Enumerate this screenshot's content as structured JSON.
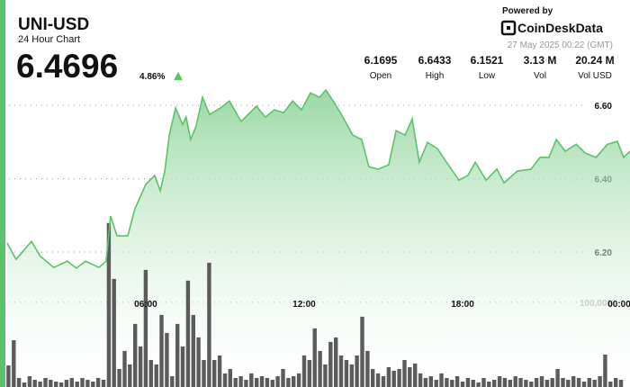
{
  "header": {
    "symbol": "UNI-USD",
    "subtitle": "24 Hour Chart",
    "price": "6.4696",
    "change": "4.86%",
    "powered": "Powered by",
    "brand": "CoinDeskData",
    "timestamp": "27 May 2025 00:22 (GMT)",
    "stats": [
      {
        "value": "6.1695",
        "label": "Open"
      },
      {
        "value": "6.6433",
        "label": "High"
      },
      {
        "value": "6.1521",
        "label": "Low"
      },
      {
        "value": "3.13 M",
        "label": "Vol"
      },
      {
        "value": "20.24 M",
        "label": "Vol USD"
      }
    ]
  },
  "chart_data": [
    {
      "type": "line",
      "color": "#5cc26b",
      "x": [
        0.75,
        1.09,
        1.67,
        2.01,
        2.52,
        3.03,
        3.37,
        3.72,
        4.23,
        4.5,
        4.67,
        4.91,
        5.32,
        5.59,
        6.0,
        6.34,
        6.55,
        6.72,
        6.89,
        7.13,
        7.4,
        7.53,
        7.7,
        7.91,
        8.15,
        8.42,
        8.83,
        9.17,
        9.61,
        10.19,
        10.53,
        10.87,
        11.22,
        11.56,
        11.9,
        12.24,
        12.58,
        12.82,
        13.16,
        13.43,
        13.84,
        14.18,
        14.45,
        14.8,
        15.2,
        15.48,
        15.82,
        16.09,
        16.36,
        16.67,
        17.05,
        17.39,
        17.86,
        18.2,
        18.48,
        18.89,
        19.3,
        19.57,
        20.08,
        20.59,
        20.93,
        21.27,
        21.55,
        21.89,
        22.3,
        22.64,
        23.05,
        23.49,
        23.86,
        24.1,
        24.34
      ],
      "values": [
        6.225,
        6.18,
        6.229,
        6.188,
        6.158,
        6.175,
        6.156,
        6.175,
        6.158,
        6.175,
        6.298,
        6.244,
        6.244,
        6.318,
        6.384,
        6.409,
        6.367,
        6.421,
        6.519,
        6.593,
        6.548,
        6.568,
        6.507,
        6.544,
        6.622,
        6.575,
        6.593,
        6.612,
        6.556,
        6.598,
        6.568,
        6.588,
        6.58,
        6.612,
        6.588,
        6.634,
        6.622,
        6.642,
        6.605,
        6.573,
        6.519,
        6.507,
        6.433,
        6.426,
        6.438,
        6.531,
        6.519,
        6.563,
        6.445,
        6.499,
        6.482,
        6.445,
        6.396,
        6.409,
        6.445,
        6.396,
        6.426,
        6.389,
        6.421,
        6.426,
        6.458,
        6.458,
        6.507,
        6.475,
        6.494,
        6.47,
        6.458,
        6.494,
        6.502,
        6.458,
        6.475
      ],
      "xlim": [
        0.48,
        24.34
      ],
      "ylim": [
        5.832,
        6.691
      ],
      "xticks": [
        {
          "value": 6,
          "label": "06:00"
        },
        {
          "value": 12,
          "label": "12:00"
        },
        {
          "value": 18,
          "label": "18:00"
        },
        {
          "value": 24,
          "label": "00:00"
        }
      ],
      "yticks": [
        {
          "value": 6.2,
          "label": "6.20"
        },
        {
          "value": 6.4,
          "label": "6.40"
        },
        {
          "value": 6.6,
          "label": "6.60"
        }
      ]
    },
    {
      "type": "bar",
      "color": "#5b5b5b",
      "x": [
        0.8,
        1.0,
        1.2,
        1.4,
        1.6,
        1.8,
        2.0,
        2.2,
        2.4,
        2.6,
        2.8,
        3.0,
        3.2,
        3.4,
        3.6,
        3.8,
        4.0,
        4.2,
        4.4,
        4.6,
        4.8,
        5.0,
        5.2,
        5.4,
        5.6,
        5.8,
        6.0,
        6.2,
        6.4,
        6.6,
        6.8,
        7.0,
        7.2,
        7.4,
        7.6,
        7.8,
        8.0,
        8.2,
        8.4,
        8.6,
        8.8,
        9.0,
        9.2,
        9.4,
        9.6,
        9.8,
        10.0,
        10.2,
        10.4,
        10.6,
        10.8,
        11.0,
        11.2,
        11.4,
        11.6,
        11.8,
        12.0,
        12.2,
        12.4,
        12.6,
        12.8,
        13.0,
        13.2,
        13.4,
        13.6,
        13.8,
        14.0,
        14.2,
        14.4,
        14.6,
        14.8,
        15.0,
        15.2,
        15.4,
        15.6,
        15.8,
        16.0,
        16.2,
        16.4,
        16.6,
        16.8,
        17.0,
        17.2,
        17.4,
        17.6,
        17.8,
        18.0,
        18.2,
        18.4,
        18.6,
        18.8,
        19.0,
        19.2,
        19.4,
        19.6,
        19.8,
        20.0,
        20.2,
        20.4,
        20.6,
        20.8,
        21.0,
        21.2,
        21.4,
        21.6,
        21.8,
        22.0,
        22.2,
        22.4,
        22.6,
        22.8,
        23.0,
        23.2,
        23.4,
        23.6,
        23.8,
        24.0
      ],
      "values": [
        25500,
        55300,
        10600,
        5300,
        12800,
        8500,
        6400,
        10600,
        8500,
        6400,
        5300,
        8500,
        10600,
        6400,
        10600,
        8500,
        6400,
        10600,
        8500,
        193600,
        127700,
        21300,
        42600,
        26600,
        74500,
        47900,
        138300,
        31900,
        26600,
        85100,
        63800,
        12800,
        74500,
        47900,
        125600,
        85100,
        58500,
        31900,
        146800,
        31900,
        37200,
        16000,
        21300,
        10600,
        12800,
        8500,
        16000,
        10600,
        12800,
        10600,
        8500,
        12800,
        21300,
        10600,
        12800,
        16000,
        37200,
        31900,
        69200,
        42600,
        26600,
        53200,
        58500,
        37200,
        31900,
        26600,
        37200,
        83000,
        42600,
        21300,
        16000,
        12800,
        23400,
        19200,
        21300,
        31900,
        23400,
        27700,
        16000,
        10600,
        12800,
        8500,
        16000,
        10600,
        8500,
        12800,
        6400,
        10600,
        8500,
        5300,
        10600,
        6400,
        8500,
        12800,
        10600,
        8500,
        12800,
        10600,
        8500,
        6400,
        10600,
        12800,
        8500,
        10600,
        21300,
        10600,
        8500,
        12800,
        10600,
        6400,
        10600,
        8500,
        12800,
        38300,
        6400,
        10600,
        8500
      ],
      "ylim": [
        0,
        372000
      ],
      "yticks": [
        {
          "value": 100000,
          "label": "100,000"
        }
      ]
    }
  ]
}
